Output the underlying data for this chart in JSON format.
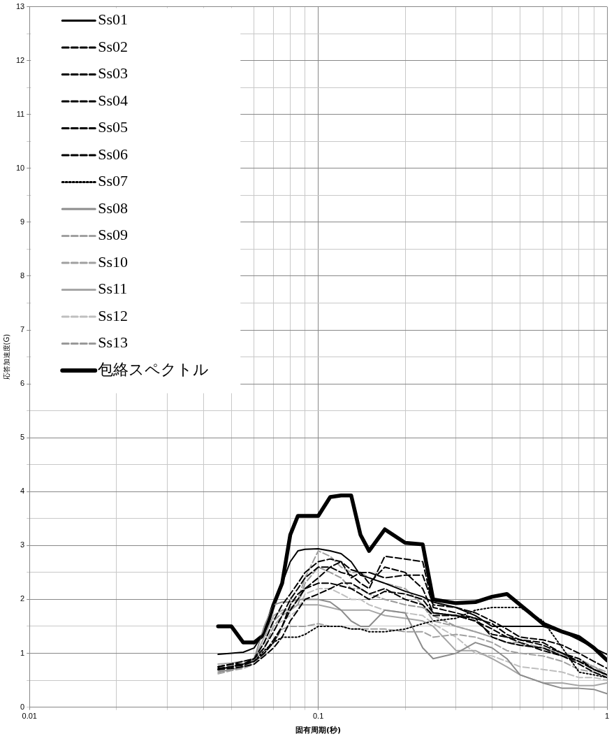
{
  "chart_data": {
    "type": "line",
    "xlabel": "固有周期(秒)",
    "ylabel": "応答加速度(G)",
    "log": "x",
    "grid": true,
    "legend": "top left",
    "marker": "none",
    "x": [
      0.045,
      0.05,
      0.055,
      0.06,
      0.065,
      0.07,
      0.075,
      0.08,
      0.085,
      0.09,
      0.1,
      0.11,
      0.12,
      0.13,
      0.14,
      0.15,
      0.17,
      0.2,
      0.23,
      0.25,
      0.3,
      0.35,
      0.4,
      0.45,
      0.5,
      0.6,
      0.7,
      0.8,
      0.9,
      1.0
    ],
    "xlim": [
      0.01,
      1
    ],
    "xticks": [
      0.01,
      {
        "value": 0.02,
        "label": null
      },
      {
        "value": 0.03,
        "label": null
      },
      {
        "value": 0.04,
        "label": null
      },
      {
        "value": 0.05,
        "label": null
      },
      {
        "value": 0.06,
        "label": null
      },
      {
        "value": 0.07,
        "label": null
      },
      {
        "value": 0.08,
        "label": null
      },
      {
        "value": 0.09,
        "label": null
      },
      0.1,
      {
        "value": 0.2,
        "label": null
      },
      {
        "value": 0.3,
        "label": null
      },
      {
        "value": 0.4,
        "label": null
      },
      {
        "value": 0.5,
        "label": null
      },
      {
        "value": 0.6,
        "label": null
      },
      {
        "value": 0.7,
        "label": null
      },
      {
        "value": 0.8,
        "label": null
      },
      {
        "value": 0.9,
        "label": null
      },
      1
    ],
    "ylim": [
      0,
      13
    ],
    "yticks": [
      0,
      {
        "value": 0.5,
        "label": null
      },
      1,
      {
        "value": 1.5,
        "label": null
      },
      2,
      {
        "value": 2.5,
        "label": null
      },
      3,
      {
        "value": 3.5,
        "label": null
      },
      4,
      {
        "value": 4.5,
        "label": null
      },
      5,
      {
        "value": 5.5,
        "label": null
      },
      6,
      {
        "value": 6.5,
        "label": null
      },
      7,
      {
        "value": 7.5,
        "label": null
      },
      8,
      {
        "value": 8.5,
        "label": null
      },
      9,
      {
        "value": 9.5,
        "label": null
      },
      10,
      {
        "value": 10.5,
        "label": null
      },
      11,
      {
        "value": 11.5,
        "label": null
      },
      12,
      {
        "value": 12.5,
        "label": null
      },
      13
    ],
    "series": [
      {
        "name": "Ss01",
        "color": "#000000",
        "line_style": "solid",
        "values": [
          0.98,
          1.0,
          1.02,
          1.1,
          1.4,
          1.9,
          2.3,
          2.7,
          2.9,
          2.93,
          2.94,
          2.9,
          2.85,
          2.7,
          2.45,
          2.4,
          2.3,
          2.15,
          2.05,
          1.95,
          1.85,
          1.7,
          1.5,
          1.5,
          1.5,
          1.5,
          1.4,
          1.25,
          1.1,
          0.98
        ]
      },
      {
        "name": "Ss02",
        "color": "#000000",
        "line_style": "dashed",
        "values": [
          0.75,
          0.8,
          0.85,
          0.9,
          1.2,
          1.6,
          1.9,
          2.1,
          2.3,
          2.5,
          2.7,
          2.75,
          2.7,
          2.55,
          2.5,
          2.5,
          2.4,
          2.45,
          2.45,
          1.9,
          1.85,
          1.75,
          1.6,
          1.45,
          1.3,
          1.25,
          1.15,
          1.0,
          0.85,
          0.72
        ]
      },
      {
        "name": "Ss03",
        "color": "#000000",
        "line_style": "dashed",
        "values": [
          0.7,
          0.75,
          0.8,
          0.9,
          1.1,
          1.4,
          1.7,
          2.0,
          2.2,
          2.4,
          2.6,
          2.6,
          2.5,
          2.45,
          2.3,
          2.2,
          2.8,
          2.75,
          2.7,
          1.85,
          1.75,
          1.65,
          1.55,
          1.35,
          1.25,
          1.2,
          1.0,
          0.9,
          0.7,
          0.6
        ]
      },
      {
        "name": "Ss04",
        "color": "#000000",
        "line_style": "dashed",
        "values": [
          0.75,
          0.8,
          0.8,
          0.85,
          1.0,
          1.2,
          1.5,
          1.8,
          2.0,
          2.2,
          2.4,
          2.6,
          2.7,
          2.4,
          2.5,
          2.3,
          2.6,
          2.5,
          2.2,
          1.75,
          1.7,
          1.6,
          1.35,
          1.3,
          1.25,
          1.15,
          1.0,
          0.85,
          0.7,
          0.6
        ]
      },
      {
        "name": "Ss05",
        "color": "#000000",
        "line_style": "dashed",
        "values": [
          0.7,
          0.72,
          0.75,
          0.8,
          0.95,
          1.1,
          1.3,
          1.6,
          1.8,
          2.0,
          2.1,
          2.2,
          2.3,
          2.3,
          2.2,
          2.1,
          2.2,
          2.0,
          1.9,
          1.7,
          1.7,
          1.6,
          1.45,
          1.3,
          1.2,
          1.05,
          0.95,
          0.8,
          0.65,
          0.55
        ]
      },
      {
        "name": "Ss06",
        "color": "#000000",
        "line_style": "dashed",
        "values": [
          0.72,
          0.75,
          0.78,
          0.85,
          1.0,
          1.25,
          1.5,
          1.9,
          2.1,
          2.2,
          2.3,
          2.3,
          2.25,
          2.2,
          2.1,
          2.0,
          2.15,
          2.1,
          2.0,
          1.75,
          1.7,
          1.65,
          1.3,
          1.2,
          1.15,
          1.1,
          0.95,
          0.85,
          0.7,
          0.6
        ]
      },
      {
        "name": "Ss07",
        "color": "#000000",
        "line_style": "dotted",
        "values": [
          0.7,
          0.75,
          0.8,
          0.85,
          1.05,
          1.2,
          1.3,
          1.3,
          1.3,
          1.35,
          1.5,
          1.5,
          1.5,
          1.45,
          1.45,
          1.4,
          1.4,
          1.45,
          1.55,
          1.6,
          1.65,
          1.8,
          1.85,
          1.85,
          1.85,
          1.6,
          1.1,
          0.65,
          0.6,
          0.55
        ]
      },
      {
        "name": "Ss08",
        "color": "#8c8c8c",
        "line_style": "solid",
        "values": [
          0.65,
          0.7,
          0.75,
          0.9,
          1.5,
          1.9,
          1.95,
          1.95,
          2.0,
          2.0,
          2.0,
          1.95,
          1.8,
          1.6,
          1.5,
          1.5,
          1.8,
          1.75,
          1.1,
          0.9,
          1.0,
          1.2,
          1.1,
          0.9,
          0.6,
          0.45,
          0.35,
          0.35,
          0.33,
          0.25
        ]
      },
      {
        "name": "Ss09",
        "color": "#a0a0a0",
        "line_style": "dashed",
        "values": [
          0.62,
          0.68,
          0.72,
          0.8,
          1.0,
          1.2,
          1.45,
          1.5,
          1.5,
          1.5,
          1.55,
          1.5,
          1.5,
          1.45,
          1.45,
          1.45,
          1.45,
          1.4,
          1.4,
          1.3,
          1.35,
          1.3,
          1.2,
          1.05,
          1.0,
          0.95,
          0.85,
          0.7,
          0.65,
          0.55
        ]
      },
      {
        "name": "Ss10",
        "color": "#a0a0a0",
        "line_style": "dashed",
        "values": [
          0.68,
          0.7,
          0.75,
          0.85,
          1.1,
          1.5,
          1.7,
          1.8,
          2.0,
          2.4,
          2.9,
          2.8,
          2.6,
          2.5,
          2.5,
          2.4,
          2.3,
          2.2,
          1.9,
          1.6,
          1.5,
          1.4,
          1.3,
          1.2,
          1.2,
          1.1,
          1.0,
          0.9,
          0.75,
          0.65
        ]
      },
      {
        "name": "Ss11",
        "color": "#a6a6a6",
        "line_style": "solid",
        "values": [
          0.8,
          0.82,
          0.85,
          0.9,
          1.3,
          1.7,
          1.8,
          1.8,
          1.9,
          1.9,
          1.9,
          1.85,
          1.8,
          1.8,
          1.8,
          1.8,
          1.7,
          1.65,
          1.6,
          1.5,
          1.05,
          1.05,
          0.9,
          0.75,
          0.6,
          0.45,
          0.45,
          0.4,
          0.4,
          0.45
        ]
      },
      {
        "name": "Ss12",
        "color": "#bfbfbf",
        "line_style": "dashed",
        "values": [
          0.7,
          0.72,
          0.78,
          0.85,
          1.1,
          1.5,
          1.6,
          1.7,
          1.8,
          2.1,
          2.2,
          2.2,
          2.1,
          2.0,
          2.0,
          1.9,
          1.8,
          1.75,
          1.7,
          1.55,
          1.3,
          1.0,
          0.95,
          0.85,
          0.75,
          0.7,
          0.65,
          0.55,
          0.55,
          0.5
        ]
      },
      {
        "name": "Ss13",
        "color": "#999999",
        "line_style": "dashed",
        "values": [
          0.75,
          0.78,
          0.8,
          0.88,
          1.2,
          1.6,
          1.75,
          1.85,
          1.9,
          2.3,
          2.6,
          2.5,
          2.4,
          2.2,
          2.2,
          2.1,
          2.0,
          1.9,
          1.85,
          1.7,
          1.5,
          1.4,
          1.3,
          1.2,
          1.15,
          1.1,
          0.95,
          0.85,
          0.75,
          0.6
        ]
      },
      {
        "name": "包絡スペクトル",
        "color": "#000000",
        "line_style": "solid",
        "values": [
          1.5,
          1.5,
          1.2,
          1.2,
          1.35,
          1.9,
          2.3,
          3.2,
          3.55,
          3.55,
          3.55,
          3.9,
          3.93,
          3.93,
          3.2,
          2.9,
          3.3,
          3.05,
          3.02,
          2.0,
          1.93,
          1.95,
          2.05,
          2.1,
          1.9,
          1.55,
          1.4,
          1.3,
          1.1,
          0.87
        ]
      }
    ]
  }
}
